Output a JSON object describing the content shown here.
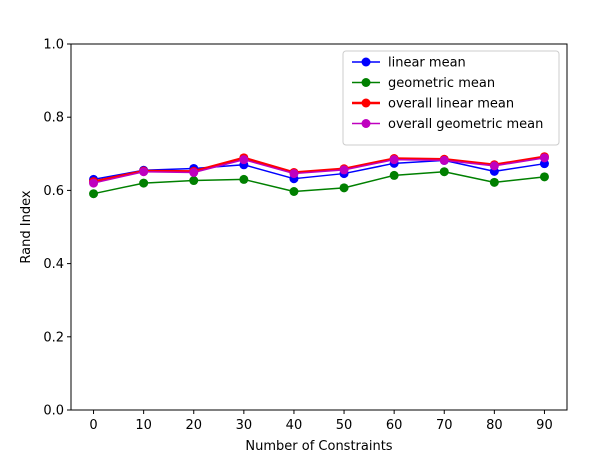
{
  "chart_data": {
    "type": "line",
    "xlabel": "Number of Constraints",
    "ylabel": "Rand Index",
    "x": [
      0,
      10,
      20,
      30,
      40,
      50,
      60,
      70,
      80,
      90
    ],
    "xlim": [
      -4.5,
      94.5
    ],
    "ylim": [
      0.0,
      1.0
    ],
    "xticks": [
      0,
      10,
      20,
      30,
      40,
      50,
      60,
      70,
      80,
      90
    ],
    "yticks": [
      "0.0",
      "0.2",
      "0.4",
      "0.6",
      "0.8",
      "1.0"
    ],
    "grid": false,
    "legend_position": "top-right",
    "series": [
      {
        "name": "linear mean",
        "color": "#0000ff",
        "linewidth": 1.5,
        "values": [
          0.63,
          0.655,
          0.66,
          0.67,
          0.632,
          0.646,
          0.674,
          0.682,
          0.652,
          0.673
        ]
      },
      {
        "name": "geometric mean",
        "color": "#008000",
        "linewidth": 1.5,
        "values": [
          0.591,
          0.62,
          0.627,
          0.63,
          0.597,
          0.607,
          0.641,
          0.651,
          0.622,
          0.637
        ]
      },
      {
        "name": "overall linear mean",
        "color": "#ff0000",
        "linewidth": 2.5,
        "values": [
          0.624,
          0.653,
          0.652,
          0.689,
          0.649,
          0.659,
          0.687,
          0.685,
          0.67,
          0.692
        ]
      },
      {
        "name": "overall geometric mean",
        "color": "#bf00bf",
        "linewidth": 1.5,
        "values": [
          0.62,
          0.651,
          0.649,
          0.684,
          0.646,
          0.656,
          0.684,
          0.682,
          0.667,
          0.689
        ]
      }
    ]
  }
}
